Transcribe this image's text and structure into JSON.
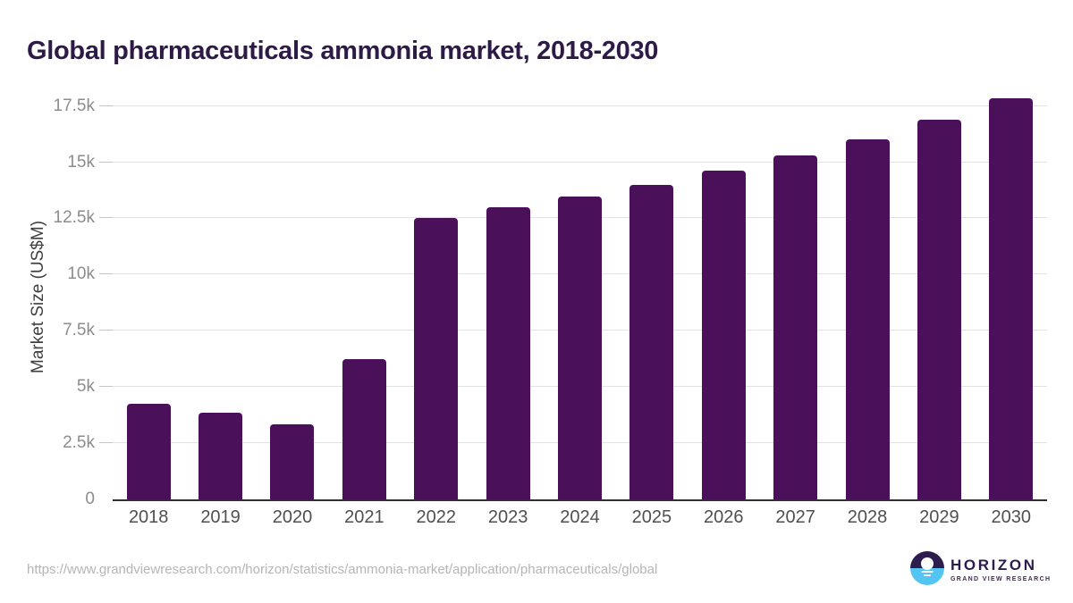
{
  "title": "Global pharmaceuticals ammonia market, 2018-2030",
  "chart_data": {
    "type": "bar",
    "title": "Global pharmaceuticals ammonia market, 2018-2030",
    "categories": [
      "2018",
      "2019",
      "2020",
      "2021",
      "2022",
      "2023",
      "2024",
      "2025",
      "2026",
      "2027",
      "2028",
      "2029",
      "2030"
    ],
    "values": [
      4250,
      3860,
      3320,
      6230,
      12520,
      12980,
      13460,
      13980,
      14630,
      15280,
      16020,
      16890,
      17840
    ],
    "xlabel": "",
    "ylabel": "Market Size (US$M)",
    "ylim": [
      0,
      18000
    ],
    "yticks": [
      0,
      2500,
      5000,
      7500,
      10000,
      12500,
      15000,
      17500
    ],
    "ytick_labels": [
      "0",
      "2.5k",
      "5k",
      "7.5k",
      "10k",
      "12.5k",
      "15k",
      "17.5k"
    ],
    "grid": true,
    "legend": "none",
    "bar_color": "#4a1059"
  },
  "colors": {
    "title_text": "#2e1a47",
    "bar": "#4a1059",
    "gridline": "#e2e2e2",
    "axis_line": "#2f2f2f",
    "tick_label": "#8c8c8c",
    "x_label": "#4f4f4f",
    "url_text": "#b5b5b5",
    "logo_dark": "#2d1d4e",
    "logo_blue": "#54c4f2"
  },
  "footer": {
    "source_url": "https://www.grandviewresearch.com/horizon/statistics/ammonia-market/application/pharmaceuticals/global",
    "logo": {
      "wordmark": "HORIZON",
      "subtitle": "GRAND VIEW RESEARCH"
    }
  }
}
